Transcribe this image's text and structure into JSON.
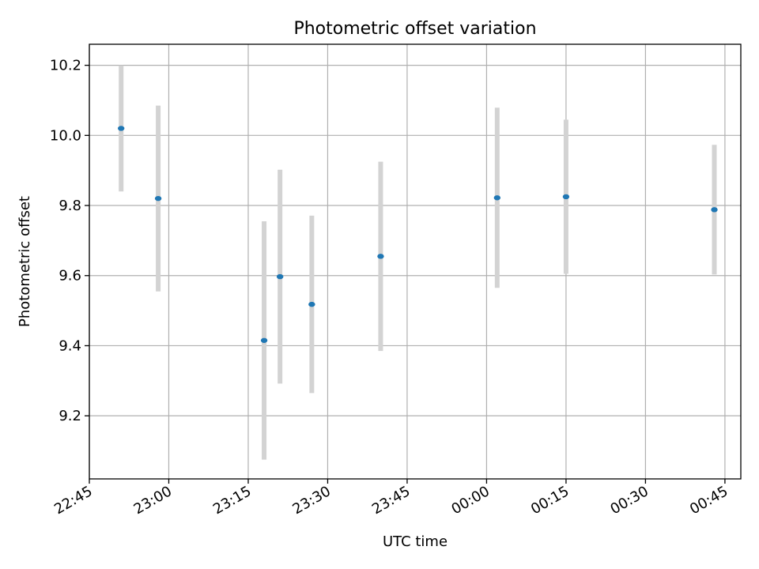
{
  "chart_data": {
    "type": "scatter",
    "title": "Photometric offset variation",
    "xlabel": "UTC time",
    "ylabel": "Photometric offset",
    "x_axis_type": "time",
    "xlim": [
      "22:45",
      "00:48"
    ],
    "ylim": [
      9.02,
      10.26
    ],
    "x_ticks": [
      "22:45",
      "23:00",
      "23:15",
      "23:30",
      "23:45",
      "00:00",
      "00:15",
      "00:30",
      "00:45"
    ],
    "y_ticks": [
      9.2,
      9.4,
      9.6,
      9.8,
      10.0,
      10.2
    ],
    "y_tick_labels": [
      "9.2",
      "9.4",
      "9.6",
      "9.8",
      "10.0",
      "10.2"
    ],
    "grid": true,
    "marker_color": "#1f77b4",
    "errorbar_color": "#d3d3d3",
    "points": [
      {
        "x": "22:51",
        "y": 10.02,
        "err": 0.18
      },
      {
        "x": "22:58",
        "y": 9.82,
        "err": 0.265
      },
      {
        "x": "23:18",
        "y": 9.415,
        "err": 0.34
      },
      {
        "x": "23:21",
        "y": 9.597,
        "err": 0.305
      },
      {
        "x": "23:27",
        "y": 9.518,
        "err": 0.253
      },
      {
        "x": "23:40",
        "y": 9.655,
        "err": 0.27
      },
      {
        "x": "00:02",
        "y": 9.822,
        "err": 0.257
      },
      {
        "x": "00:15",
        "y": 9.825,
        "err": 0.22
      },
      {
        "x": "00:43",
        "y": 9.788,
        "err": 0.185
      }
    ]
  }
}
